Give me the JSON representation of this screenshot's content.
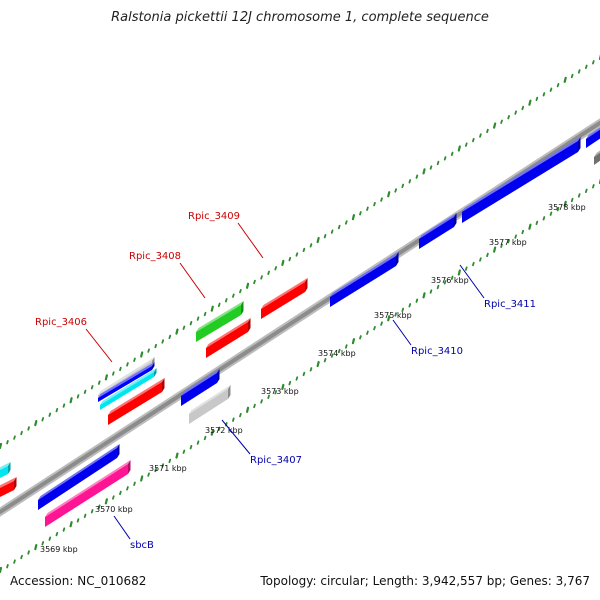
{
  "title": "Ralstonia pickettii 12J chromosome 1, complete sequence",
  "footer": {
    "accession": "Accession: NC_010682",
    "stats": "Topology: circular; Length: 3,942,557 bp; Genes: 3,767"
  },
  "colors": {
    "backbone": "#8c8c8c",
    "dots": "#2e8b2e",
    "forward_label": "#cc0000",
    "reverse_label": "#0000aa"
  },
  "ticks": [
    {
      "label": "3569 kbp"
    },
    {
      "label": "3570 kbp"
    },
    {
      "label": "3571 kbp"
    },
    {
      "label": "3572 kbp"
    },
    {
      "label": "3573 kbp"
    },
    {
      "label": "3574 kbp"
    },
    {
      "label": "3575 kbp"
    },
    {
      "label": "3576 kbp"
    },
    {
      "label": "3577 kbp"
    },
    {
      "label": "3578 kbp"
    }
  ],
  "gene_labels": [
    {
      "text": "Rpic_3406",
      "strand": "forward"
    },
    {
      "text": "Rpic_3408",
      "strand": "forward"
    },
    {
      "text": "Rpic_3409",
      "strand": "forward"
    },
    {
      "text": "sbcB",
      "strand": "reverse"
    },
    {
      "text": "Rpic_3407",
      "strand": "reverse"
    },
    {
      "text": "Rpic_3410",
      "strand": "reverse"
    },
    {
      "text": "Rpic_3411",
      "strand": "reverse"
    }
  ],
  "features": [
    {
      "name": "feature-red-left-edge",
      "color": "#ff0000"
    },
    {
      "name": "feature-cyan-left-edge",
      "color": "#00e5ee"
    },
    {
      "name": "feature-gray-3406",
      "color": "#c8c8c8"
    },
    {
      "name": "feature-blue-3406",
      "color": "#0000ff"
    },
    {
      "name": "feature-cyan-3406",
      "color": "#00e5ee"
    },
    {
      "name": "feature-red-3406",
      "color": "#ff0000"
    },
    {
      "name": "feature-green-3408",
      "color": "#22cc22"
    },
    {
      "name": "feature-red-3408",
      "color": "#ff0000"
    },
    {
      "name": "feature-red-3409",
      "color": "#ff0000"
    },
    {
      "name": "feature-blue-sbcb-upper",
      "color": "#0000ee"
    },
    {
      "name": "feature-pink-sbcb",
      "color": "#ff1493"
    },
    {
      "name": "feature-blue-3407",
      "color": "#0000ee"
    },
    {
      "name": "feature-gray-3407",
      "color": "#c8c8c8"
    },
    {
      "name": "feature-blue-3410",
      "color": "#0000ee"
    },
    {
      "name": "feature-blue-3411-small",
      "color": "#0000ee"
    },
    {
      "name": "feature-blue-3411-long",
      "color": "#0000ee"
    },
    {
      "name": "feature-blue-right-edge",
      "color": "#0000ee"
    },
    {
      "name": "feature-gray-right-edge",
      "color": "#707070"
    }
  ]
}
